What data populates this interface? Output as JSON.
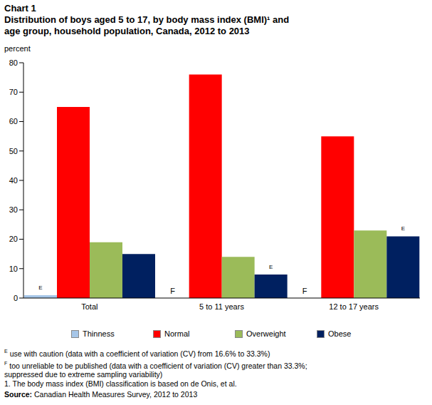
{
  "chart_data": {
    "type": "bar",
    "title": "Chart 1",
    "subtitle": [
      "Distribution of boys aged 5 to 17, by body mass index (BMI)¹ and",
      "age group, household population, Canada, 2012 to 2013"
    ],
    "y_label": "percent",
    "categories": [
      "Total",
      "5 to 11 years",
      "12 to 17 years"
    ],
    "series": [
      {
        "name": "Thinness",
        "color": "#a6c6e8",
        "values": [
          1,
          null,
          null
        ],
        "flags": [
          "E",
          "F",
          "F"
        ]
      },
      {
        "name": "Normal",
        "color": "#ff0000",
        "values": [
          65,
          76,
          55
        ]
      },
      {
        "name": "Overweight",
        "color": "#9bbb59",
        "values": [
          19,
          14,
          23
        ]
      },
      {
        "name": "Obese",
        "color": "#002060",
        "values": [
          15,
          8,
          21
        ],
        "flags": [
          null,
          "E",
          "E"
        ]
      }
    ],
    "ylim": [
      0,
      80
    ],
    "yticks": [
      0,
      10,
      20,
      30,
      40,
      50,
      60,
      70,
      80
    ],
    "grid": false,
    "legend": "bottom",
    "notes": [
      {
        "mark": "E",
        "lines": [
          "use with caution (data with a coefficient of variation (CV) from 16.6% to 33.3%)"
        ]
      },
      {
        "mark": "F",
        "lines": [
          "too unreliable to be published (data with a coefficient of variation (CV) greater than 33.3%;",
          "suppressed due to extreme sampling variability)"
        ]
      }
    ],
    "footnote": "1. The body mass index (BMI) classification is based on de Onis, et al.",
    "source_label": "Source:",
    "source": "Canadian Health Measures Survey, 2012 to 2013"
  }
}
